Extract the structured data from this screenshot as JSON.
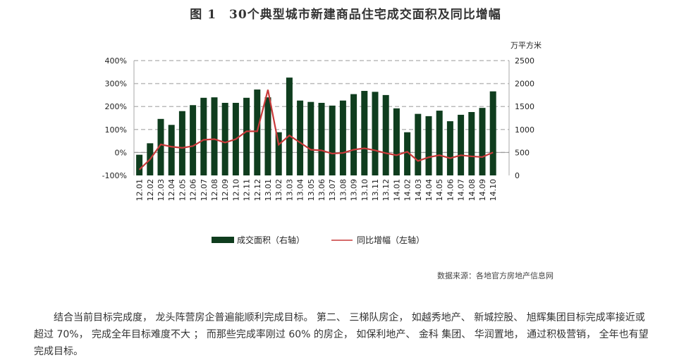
{
  "title": "图 1　30个典型城市新建商品住宅成交面积及同比增幅",
  "chart_data": {
    "type": "bar+line",
    "title": "图 1　30个典型城市新建商品住宅成交面积及同比增幅",
    "right_axis_unit": "万平方米",
    "categories": [
      "12.01",
      "12.02",
      "12.03",
      "12.04",
      "12.05",
      "12.06",
      "12.07",
      "12.08",
      "12.09",
      "12.10",
      "12.11",
      "12.12",
      "13.01",
      "13.02",
      "13.03",
      "13.04",
      "13.05",
      "13.06",
      "13.07",
      "13.08",
      "13.09",
      "13.10",
      "13.11",
      "13.12",
      "14.01",
      "14.02",
      "14.03",
      "14.04",
      "14.05",
      "14.06",
      "14.07",
      "14.08",
      "14.09",
      "14.10"
    ],
    "left_axis": {
      "range": [
        -100,
        400
      ],
      "ticks": [
        "-100%",
        "0%",
        "100%",
        "200%",
        "300%",
        "400%"
      ]
    },
    "right_axis": {
      "range": [
        0,
        2500
      ],
      "ticks": [
        "0",
        "500",
        "1000",
        "1500",
        "2000",
        "2500"
      ]
    },
    "grid": true,
    "legend_placement": "bottom",
    "series": [
      {
        "name": "成交面积（右轴）",
        "type": "bar",
        "axis": "right",
        "color": "#0f3d1e",
        "values": [
          450,
          700,
          1230,
          1100,
          1400,
          1530,
          1690,
          1700,
          1580,
          1580,
          1690,
          1870,
          1700,
          940,
          2130,
          1630,
          1600,
          1580,
          1520,
          1630,
          1770,
          1840,
          1820,
          1750,
          1460,
          940,
          1340,
          1290,
          1410,
          1180,
          1320,
          1380,
          1470,
          1830
        ]
      },
      {
        "name": "同比增幅（左轴）",
        "type": "line",
        "axis": "left",
        "color": "#c83a3a",
        "values": [
          -75,
          -30,
          35,
          25,
          20,
          28,
          55,
          58,
          43,
          58,
          92,
          92,
          273,
          34,
          74,
          43,
          12,
          9,
          -5,
          -2,
          12,
          18,
          9,
          -3,
          -12,
          3,
          -37,
          -21,
          -12,
          -25,
          -12,
          -17,
          -20,
          0
        ]
      }
    ]
  },
  "source": "数据来源：各地官方房地产信息网",
  "paragraph": "结合当前目标完成度， 龙头阵营房企普遍能顺利完成目标。 第二、 三梯队房企， 如越秀地产、 新城控股、 旭辉集团目标完成率接近或超过 70%， 完成全年目标难度不大 ； 而那些完成率刚过 60% 的房企， 如保利地产、 金科 集团、 华润置地， 通过积极营销， 全年也有望完成目标。"
}
